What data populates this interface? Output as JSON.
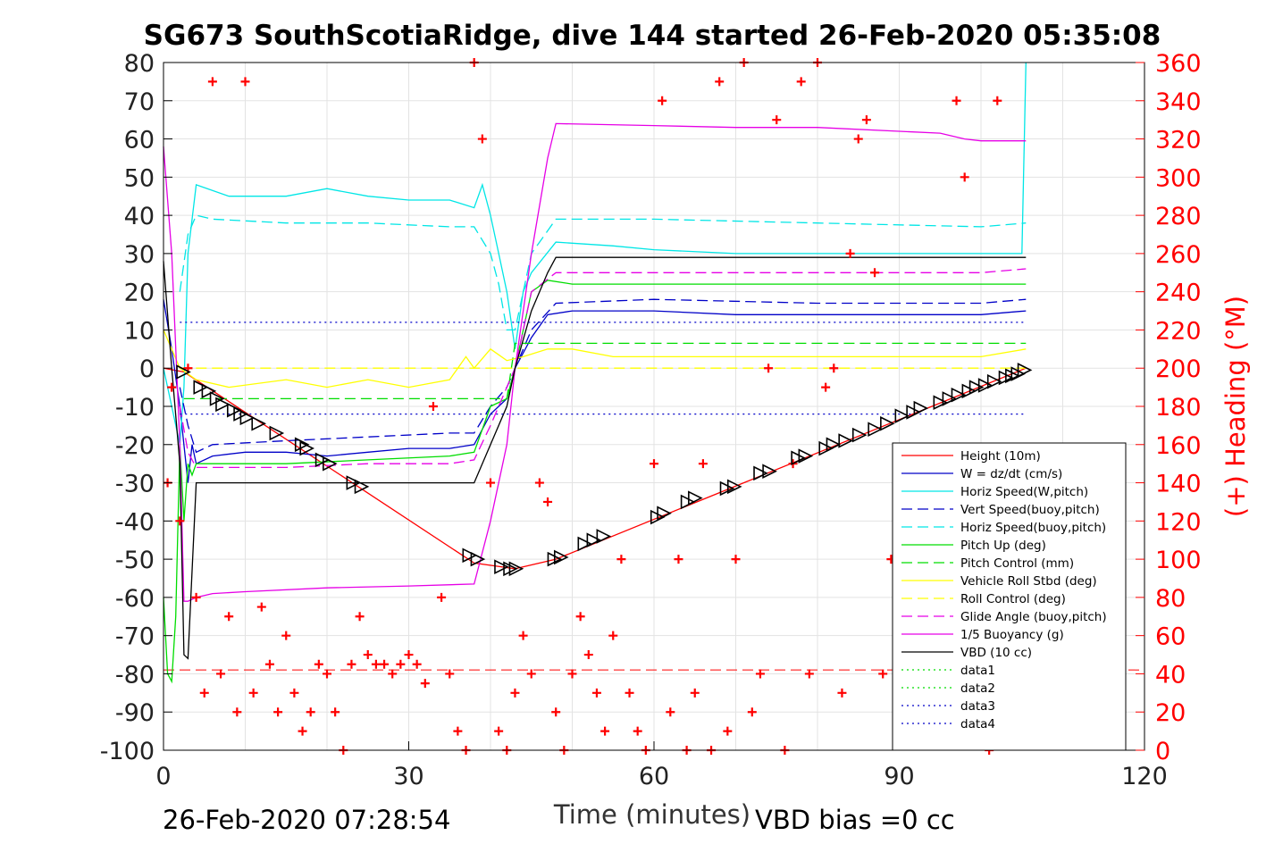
{
  "chart_data": {
    "type": "line",
    "title": "SG673 SouthScotiaRidge, dive 144 started 26-Feb-2020 05:35:08",
    "xlabel": "Time (minutes)",
    "ylabel_right": "(+) Heading (°M)",
    "xlim": [
      0,
      120
    ],
    "ylim_left": [
      -100,
      80
    ],
    "ylim_right": [
      0,
      360
    ],
    "xticks": [
      0,
      30,
      60,
      90,
      120
    ],
    "yticks_left": [
      80,
      70,
      60,
      50,
      40,
      30,
      20,
      10,
      0,
      -10,
      -20,
      -30,
      -40,
      -50,
      -60,
      -70,
      -80,
      -90,
      -100
    ],
    "yticks_right": [
      360,
      340,
      320,
      300,
      280,
      260,
      240,
      220,
      200,
      180,
      160,
      140,
      120,
      100,
      80,
      60,
      40,
      20,
      0
    ],
    "grid": true,
    "legend_position": "bottom-right",
    "footer_left": "26-Feb-2020 07:28:54",
    "footer_right": "VBD bias =0 cc",
    "series": [
      {
        "name": "Height (10m)",
        "color": "#ff0000",
        "style": "solid",
        "x": [
          0,
          2.5,
          38,
          43,
          48,
          105.5
        ],
        "y": [
          0,
          -1,
          -51,
          -52.5,
          -50,
          0
        ]
      },
      {
        "name": "W = dz/dt (cm/s)",
        "color": "#0000c8",
        "style": "solid",
        "x": [
          0,
          1,
          2,
          3,
          3.5,
          4,
          6,
          10,
          15,
          20,
          25,
          30,
          35,
          38,
          40,
          42,
          43,
          45,
          47,
          50,
          55,
          60,
          70,
          80,
          90,
          100,
          105.5
        ],
        "y": [
          18,
          5,
          -10,
          -30,
          -20,
          -25,
          -23,
          -22,
          -22,
          -23,
          -22,
          -21,
          -21,
          -20,
          -12,
          -8,
          0,
          8,
          14,
          15,
          15,
          15,
          14,
          14,
          14,
          14,
          15
        ]
      },
      {
        "name": "Horiz Speed(W,pitch)",
        "color": "#00e6e6",
        "style": "solid",
        "x": [
          0,
          1,
          2,
          2.5,
          3,
          4,
          8,
          15,
          20,
          25,
          30,
          35,
          38,
          39,
          40,
          41,
          42,
          43,
          44,
          45,
          48,
          55,
          60,
          70,
          80,
          90,
          100,
          105,
          105.5
        ],
        "y": [
          0,
          -10,
          -20,
          -5,
          30,
          48,
          45,
          45,
          47,
          45,
          44,
          44,
          42,
          48,
          40,
          30,
          20,
          5,
          20,
          25,
          33,
          32,
          31,
          30,
          30,
          30,
          30,
          30,
          80
        ]
      },
      {
        "name": "Vert Speed(buoy,pitch)",
        "color": "#0000c8",
        "style": "dash",
        "x": [
          2,
          3,
          4,
          6,
          15,
          25,
          35,
          38,
          40,
          42,
          43,
          45,
          48,
          60,
          80,
          100,
          105.5
        ],
        "y": [
          -5,
          -15,
          -22,
          -20,
          -19,
          -18,
          -17,
          -17,
          -10,
          -5,
          0,
          10,
          17,
          18,
          17,
          17,
          18
        ]
      },
      {
        "name": "Horiz Speed(buoy,pitch)",
        "color": "#00e6e6",
        "style": "dash",
        "x": [
          2,
          3,
          4,
          6,
          15,
          25,
          35,
          38,
          40,
          41,
          42,
          43,
          45,
          48,
          60,
          80,
          100,
          105.5
        ],
        "y": [
          20,
          35,
          40,
          39,
          38,
          38,
          37,
          37,
          30,
          22,
          10,
          10,
          30,
          39,
          39,
          38,
          37,
          38
        ]
      },
      {
        "name": "Pitch Up (deg)",
        "color": "#00dd00",
        "style": "solid",
        "x": [
          0,
          0.5,
          1,
          1.5,
          2,
          2.5,
          3,
          3.5,
          4,
          8,
          15,
          25,
          35,
          38,
          40,
          42,
          43,
          45,
          47,
          50,
          60,
          70,
          80,
          90,
          100,
          105.5
        ],
        "y": [
          -60,
          -80,
          -82,
          -65,
          -20,
          -40,
          -25,
          -28,
          -25,
          -25,
          -25,
          -24,
          -23,
          -22,
          -10,
          -8,
          0,
          20,
          23,
          22,
          22,
          22,
          22,
          22,
          22,
          22
        ]
      },
      {
        "name": "Pitch Control (mm)",
        "color": "#00dd00",
        "style": "dash",
        "x": [
          2.5,
          4,
          37,
          38,
          42,
          43,
          45,
          105.5
        ],
        "y": [
          -8,
          -8,
          -8,
          -8,
          -8,
          6.5,
          6.5,
          6.5
        ]
      },
      {
        "name": "Vehicle Roll Stbd (deg)",
        "color": "#ffff00",
        "style": "solid",
        "x": [
          0,
          2,
          4,
          8,
          15,
          20,
          25,
          30,
          35,
          37,
          38,
          40,
          42,
          44,
          47,
          50,
          55,
          60,
          65,
          70,
          75,
          80,
          85,
          90,
          95,
          100,
          105.5
        ],
        "y": [
          10,
          0,
          -3,
          -5,
          -3,
          -5,
          -3,
          -5,
          -3,
          3,
          0,
          5,
          2,
          3,
          5,
          5,
          3,
          3,
          3,
          3,
          3,
          3,
          3,
          3,
          3,
          3,
          5
        ]
      },
      {
        "name": "Roll Control (deg)",
        "color": "#ffff00",
        "style": "dash",
        "x": [
          2,
          6,
          10,
          15,
          20,
          25,
          30,
          35,
          38,
          42,
          45,
          50,
          55,
          60,
          65,
          70,
          75,
          80,
          85,
          90,
          95,
          100,
          105.5
        ],
        "y": [
          0,
          0,
          0,
          0,
          0,
          0,
          0,
          0,
          0,
          0,
          0,
          0,
          0,
          0,
          0,
          0,
          0,
          0,
          0,
          0,
          0,
          0,
          0
        ]
      },
      {
        "name": "Glide Angle (buoy,pitch)",
        "color": "#e600e6",
        "style": "dash",
        "x": [
          2,
          3,
          4,
          6,
          15,
          25,
          35,
          38,
          40,
          42,
          43,
          45,
          48,
          60,
          80,
          100,
          105.5
        ],
        "y": [
          -10,
          -22,
          -26,
          -26,
          -26,
          -25,
          -25,
          -24,
          -15,
          -5,
          0,
          20,
          25,
          25,
          25,
          25,
          26
        ]
      },
      {
        "name": "1/5 Buoyancy (g)",
        "color": "#e600e6",
        "style": "solid",
        "x": [
          0,
          1,
          2,
          2.5,
          3,
          4,
          6,
          10,
          20,
          30,
          38,
          40,
          42,
          43,
          45,
          47,
          48,
          60,
          70,
          80,
          90,
          95,
          98,
          100,
          105.5
        ],
        "y": [
          58,
          30,
          -20,
          -61,
          -61,
          -60,
          -59,
          -58.5,
          -57.5,
          -57,
          -56.5,
          -40,
          -20,
          0,
          30,
          55,
          64,
          63.5,
          63,
          63,
          62,
          61.5,
          60,
          59.5,
          59.5
        ]
      },
      {
        "name": "VBD (10 cc)",
        "color": "#000000",
        "style": "solid",
        "x": [
          0,
          1,
          2,
          2.5,
          3,
          4,
          37,
          38,
          42,
          43,
          45,
          47,
          48,
          105.5
        ],
        "y": [
          28,
          0,
          -25,
          -75,
          -76,
          -30,
          -30,
          -30,
          -10,
          0,
          15,
          25,
          29,
          29
        ]
      },
      {
        "name": "data1",
        "color": "#00dd00",
        "style": "dot",
        "x": [],
        "y": []
      },
      {
        "name": "data2",
        "color": "#00dd00",
        "style": "dot",
        "x": [],
        "y": []
      },
      {
        "name": "data3",
        "color": "#0000c8",
        "style": "dot",
        "x": [
          2,
          105.5
        ],
        "y": [
          12,
          12
        ]
      },
      {
        "name": "data4",
        "color": "#0000c8",
        "style": "dot",
        "x": [
          2,
          105.5
        ],
        "y": [
          -12,
          -12
        ]
      }
    ],
    "reference_line": {
      "color": "#ff0000",
      "style": "dash",
      "y_left": -79
    },
    "heading": {
      "color": "#ff0000",
      "marker": "+",
      "axis": "right",
      "x": [
        0.5,
        1,
        2,
        3,
        4,
        5,
        6,
        7,
        8,
        9,
        10,
        11,
        12,
        13,
        14,
        15,
        16,
        17,
        18,
        19,
        20,
        21,
        22,
        23,
        24,
        25,
        26,
        27,
        28,
        29,
        30,
        31,
        32,
        33,
        34,
        35,
        36,
        37,
        38,
        39,
        40,
        41,
        42,
        43,
        44,
        45,
        46,
        47,
        48,
        49,
        50,
        51,
        52,
        53,
        54,
        55,
        56,
        57,
        58,
        59,
        60,
        61,
        62,
        63,
        64,
        65,
        66,
        67,
        68,
        69,
        70,
        71,
        72,
        73,
        74,
        75,
        76,
        77,
        78,
        79,
        80,
        81,
        82,
        83,
        84,
        85,
        86,
        87,
        88,
        89,
        90,
        95,
        96,
        97,
        98,
        100,
        101,
        102
      ],
      "y": [
        140,
        190,
        120,
        200,
        80,
        30,
        350,
        40,
        70,
        20,
        350,
        30,
        75,
        45,
        20,
        60,
        30,
        10,
        20,
        45,
        40,
        20,
        0,
        45,
        70,
        50,
        45,
        45,
        40,
        45,
        50,
        45,
        35,
        180,
        80,
        40,
        10,
        0,
        360,
        320,
        140,
        10,
        0,
        30,
        60,
        40,
        140,
        130,
        20,
        0,
        40,
        70,
        50,
        30,
        10,
        60,
        100,
        30,
        10,
        0,
        150,
        340,
        20,
        100,
        0,
        30,
        150,
        0,
        350,
        10,
        100,
        360,
        20,
        40,
        200,
        330,
        0,
        150,
        350,
        40,
        360,
        190,
        200,
        30,
        260,
        320,
        330,
        250,
        40,
        100,
        10,
        40,
        60,
        340,
        300,
        20,
        0,
        340
      ]
    },
    "triangles": {
      "color": "#000000",
      "marker": "triangle-right",
      "axis": "left",
      "x": [
        2.3,
        4.4,
        5.4,
        6.4,
        7.1,
        8.5,
        9.3,
        10.1,
        11.5,
        13.7,
        16.8,
        17.4,
        19.3,
        20.2,
        23.1,
        24.1,
        37.3,
        38.3,
        41.2,
        42.3,
        43.0,
        47.7,
        48.5,
        51.4,
        52.5,
        53.7,
        60.3,
        61.1,
        64.0,
        64.9,
        68.8,
        69.7,
        72.9,
        74.0,
        77.5,
        78.4,
        80.9,
        81.8,
        83.3,
        85.0,
        86.9,
        88.4,
        90.2,
        91.6,
        92.5,
        94.9,
        96.0,
        97.1,
        98.4,
        99.3,
        100.4,
        101.5,
        102.9,
        103.7,
        104.4,
        105.2
      ],
      "y": [
        -1,
        -5,
        -6,
        -8,
        -9.5,
        -11,
        -12,
        -13,
        -14.5,
        -17,
        -20,
        -21,
        -24,
        -25,
        -30,
        -31,
        -49,
        -50,
        -52,
        -52.5,
        -52.5,
        -50,
        -49.5,
        -46,
        -45,
        -44,
        -39,
        -38,
        -35,
        -34,
        -31.5,
        -31,
        -27.5,
        -27,
        -23.5,
        -23,
        -21,
        -20,
        -19,
        -17.5,
        -16,
        -14.5,
        -12.5,
        -11.5,
        -10.5,
        -9,
        -8,
        -7,
        -6,
        -5,
        -4.5,
        -3.5,
        -2.5,
        -2,
        -1.5,
        -0.5
      ]
    }
  }
}
